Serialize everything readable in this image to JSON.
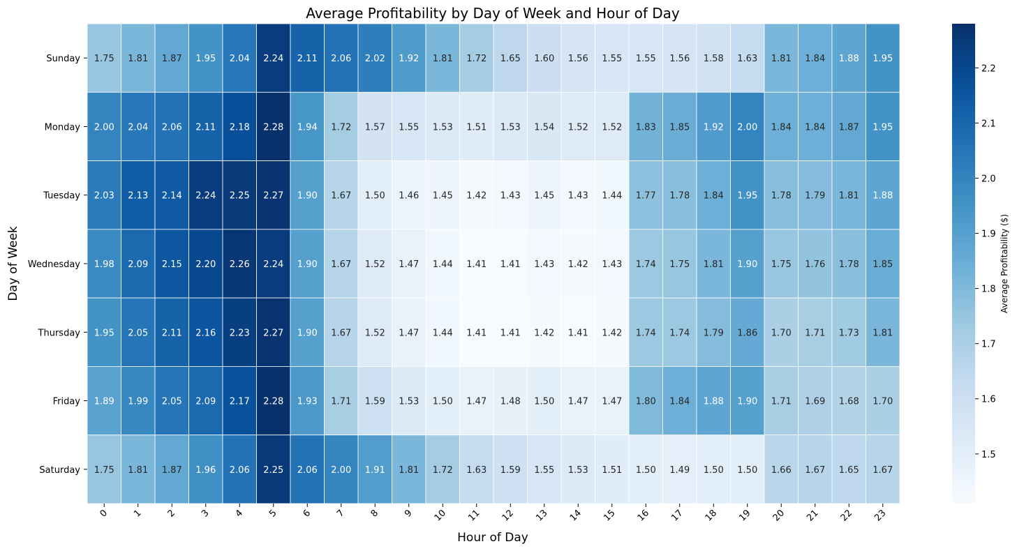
{
  "chart_data": {
    "type": "heatmap",
    "title": "Average Profitability by Day of Week and Hour of Day",
    "xlabel": "Hour of Day",
    "ylabel": "Day of Week",
    "colorbar_label": "Average Profitability ($)",
    "colormap": "Blues",
    "vmin": 1.41,
    "vmax": 2.28,
    "colorbar_ticks": [
      "1.5",
      "1.6",
      "1.7",
      "1.8",
      "1.9",
      "2.0",
      "2.1",
      "2.2"
    ],
    "x_categories": [
      "0",
      "1",
      "2",
      "3",
      "4",
      "5",
      "6",
      "7",
      "8",
      "9",
      "10",
      "11",
      "12",
      "13",
      "14",
      "15",
      "16",
      "17",
      "18",
      "19",
      "20",
      "21",
      "22",
      "23"
    ],
    "y_categories": [
      "Sunday",
      "Monday",
      "Tuesday",
      "Wednesday",
      "Thursday",
      "Friday",
      "Saturday"
    ],
    "values": [
      [
        1.75,
        1.81,
        1.87,
        1.95,
        2.04,
        2.24,
        2.11,
        2.06,
        2.02,
        1.92,
        1.81,
        1.72,
        1.65,
        1.6,
        1.56,
        1.55,
        1.55,
        1.56,
        1.58,
        1.63,
        1.81,
        1.84,
        1.88,
        1.95
      ],
      [
        2.0,
        2.04,
        2.06,
        2.11,
        2.18,
        2.28,
        1.94,
        1.72,
        1.57,
        1.55,
        1.53,
        1.51,
        1.53,
        1.54,
        1.52,
        1.52,
        1.83,
        1.85,
        1.92,
        2.0,
        1.84,
        1.84,
        1.87,
        1.95
      ],
      [
        2.03,
        2.13,
        2.14,
        2.24,
        2.25,
        2.27,
        1.9,
        1.67,
        1.5,
        1.46,
        1.45,
        1.42,
        1.43,
        1.45,
        1.43,
        1.44,
        1.77,
        1.78,
        1.84,
        1.95,
        1.78,
        1.79,
        1.81,
        1.88
      ],
      [
        1.98,
        2.09,
        2.15,
        2.2,
        2.26,
        2.24,
        1.9,
        1.67,
        1.52,
        1.47,
        1.44,
        1.41,
        1.41,
        1.43,
        1.42,
        1.43,
        1.74,
        1.75,
        1.81,
        1.9,
        1.75,
        1.76,
        1.78,
        1.85
      ],
      [
        1.95,
        2.05,
        2.11,
        2.16,
        2.23,
        2.27,
        1.9,
        1.67,
        1.52,
        1.47,
        1.44,
        1.41,
        1.41,
        1.42,
        1.41,
        1.42,
        1.74,
        1.74,
        1.79,
        1.86,
        1.7,
        1.71,
        1.73,
        1.81
      ],
      [
        1.89,
        1.99,
        2.05,
        2.09,
        2.17,
        2.28,
        1.93,
        1.71,
        1.59,
        1.53,
        1.5,
        1.47,
        1.48,
        1.5,
        1.47,
        1.47,
        1.8,
        1.84,
        1.88,
        1.9,
        1.71,
        1.69,
        1.68,
        1.7
      ],
      [
        1.75,
        1.81,
        1.87,
        1.96,
        2.06,
        2.25,
        2.06,
        2.0,
        1.91,
        1.81,
        1.72,
        1.63,
        1.59,
        1.55,
        1.53,
        1.51,
        1.5,
        1.49,
        1.5,
        1.5,
        1.66,
        1.67,
        1.65,
        1.67
      ]
    ],
    "value_format": "2 decimals"
  }
}
